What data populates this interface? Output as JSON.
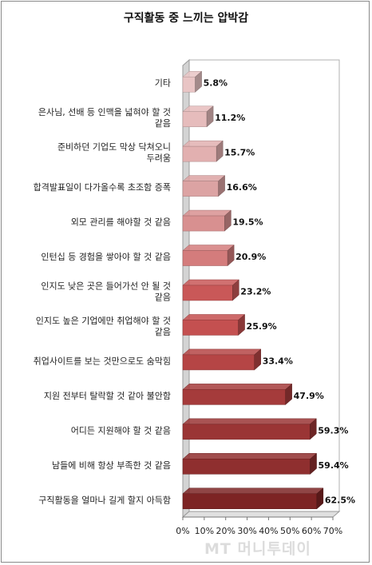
{
  "chart_data": {
    "type": "bar",
    "orientation": "horizontal",
    "title": "구직활동 중 느끼는 압박감",
    "categories": [
      [
        "기타"
      ],
      [
        "은사님, 선배 등 인맥을 넓혀야 할 것",
        "같음"
      ],
      [
        "준비하던 기업도 막상 닥쳐오니",
        "두려움"
      ],
      [
        "합격발표일이 다가올수록 초조함 증폭"
      ],
      [
        "외모 관리를 해야할 것 같음"
      ],
      [
        "인턴십 등 경험을 쌓아야 할 것 같음"
      ],
      [
        "인지도 낮은 곳은 들어가선 안 될 것",
        "같음"
      ],
      [
        "인지도 높은 기업에만 취업해야 할 것",
        "같음"
      ],
      [
        "취업사이트를 보는 것만으로도 숨막힘"
      ],
      [
        "지원 전부터 탈락할 것 같아 불안함"
      ],
      [
        "어디든 지원해야 할 것 같음"
      ],
      [
        "남들에 비해 항상 부족한 것 같음"
      ],
      [
        "구직활동을 얼마나 길게 할지 아득함"
      ]
    ],
    "values": [
      5.8,
      11.2,
      15.7,
      16.6,
      19.5,
      20.9,
      23.2,
      25.9,
      33.4,
      47.9,
      59.3,
      59.4,
      62.5
    ],
    "value_labels": [
      "5.8%",
      "11.2%",
      "15.7%",
      "16.6%",
      "19.5%",
      "20.9%",
      "23.2%",
      "25.9%",
      "33.4%",
      "47.9%",
      "59.3%",
      "59.4%",
      "62.5%"
    ],
    "xlim": [
      0,
      70
    ],
    "x_ticks": [
      "0%",
      "10%",
      "20%",
      "30%",
      "40%",
      "50%",
      "60%",
      "70%"
    ],
    "colors": [
      "#e9c5c5",
      "#e6bcbc",
      "#e2b0b0",
      "#dca3a3",
      "#d89090",
      "#d47c7c",
      "#c95858",
      "#c45050",
      "#b54545",
      "#a53b3b",
      "#9a3535",
      "#8f2f2f",
      "#7d2424"
    ],
    "grid": false,
    "legend": "none",
    "style": "3d"
  },
  "watermark": "MT 머니투데이"
}
